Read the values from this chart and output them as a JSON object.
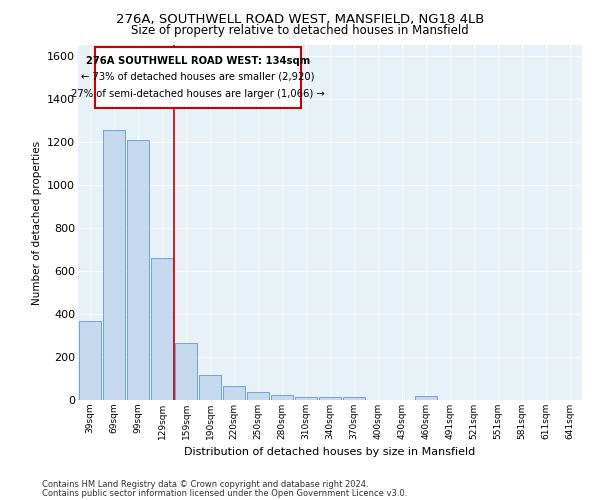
{
  "title1": "276A, SOUTHWELL ROAD WEST, MANSFIELD, NG18 4LB",
  "title2": "Size of property relative to detached houses in Mansfield",
  "xlabel": "Distribution of detached houses by size in Mansfield",
  "ylabel": "Number of detached properties",
  "categories": [
    "39sqm",
    "69sqm",
    "99sqm",
    "129sqm",
    "159sqm",
    "190sqm",
    "220sqm",
    "250sqm",
    "280sqm",
    "310sqm",
    "340sqm",
    "370sqm",
    "400sqm",
    "430sqm",
    "460sqm",
    "491sqm",
    "521sqm",
    "551sqm",
    "581sqm",
    "611sqm",
    "641sqm"
  ],
  "values": [
    365,
    1255,
    1210,
    660,
    265,
    115,
    65,
    35,
    22,
    15,
    12,
    12,
    0,
    0,
    20,
    0,
    0,
    0,
    0,
    0,
    0
  ],
  "bar_color": "#c5d8ed",
  "bar_edge_color": "#5b9bd5",
  "vline_x": 3.5,
  "annotation_title": "276A SOUTHWELL ROAD WEST: 134sqm",
  "annotation_line1": "← 73% of detached houses are smaller (2,920)",
  "annotation_line2": "27% of semi-detached houses are larger (1,066) →",
  "vline_color": "#cc0000",
  "ylim": [
    0,
    1650
  ],
  "yticks": [
    0,
    200,
    400,
    600,
    800,
    1000,
    1200,
    1400,
    1600
  ],
  "background_color": "#e8f0f8",
  "grid_color": "#ffffff",
  "footer1": "Contains HM Land Registry data © Crown copyright and database right 2024.",
  "footer2": "Contains public sector information licensed under the Open Government Licence v3.0."
}
